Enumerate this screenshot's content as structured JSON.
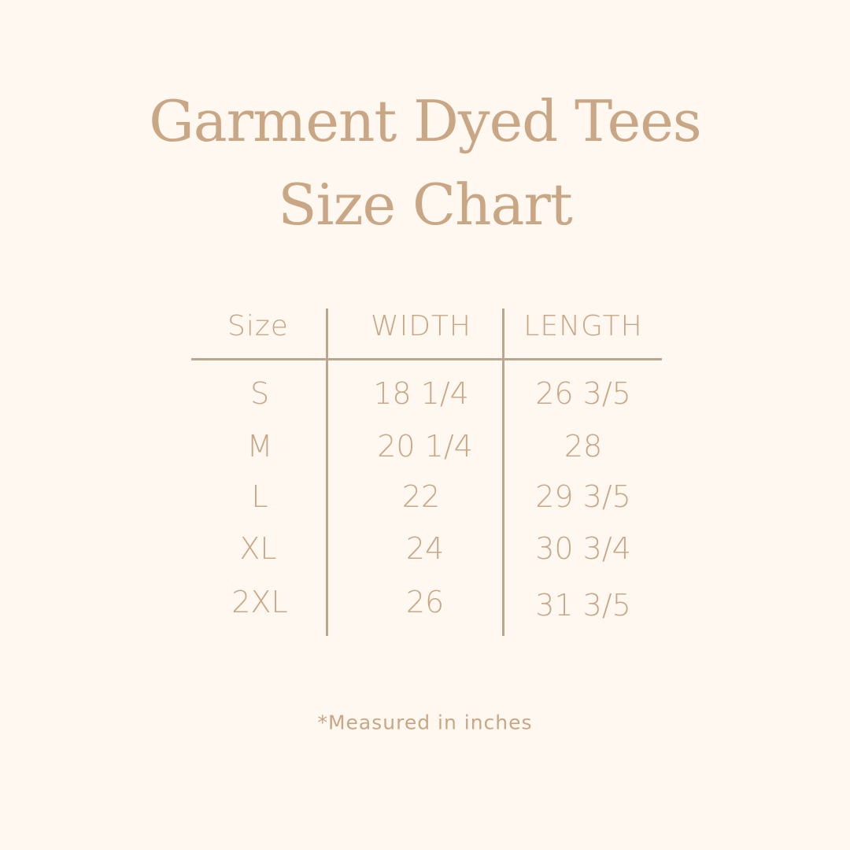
{
  "title_line1": "Garment Dyed Tees",
  "title_line2": "Size Chart",
  "table": {
    "headers": [
      "Size",
      "WIDTH",
      "LENGTH"
    ],
    "rows": [
      [
        "S",
        "18 1/4",
        "26 3/5"
      ],
      [
        "M",
        "20 1/4",
        "28"
      ],
      [
        "L",
        "22",
        "29 3/5"
      ],
      [
        "XL",
        "24",
        "30 3/4"
      ],
      [
        "2XL",
        "26",
        "31 3/5"
      ]
    ]
  },
  "footnote": "*Measured in inches",
  "colors": {
    "background": "#fef8f0",
    "text": "#c9a684",
    "lines": "#bca690"
  }
}
